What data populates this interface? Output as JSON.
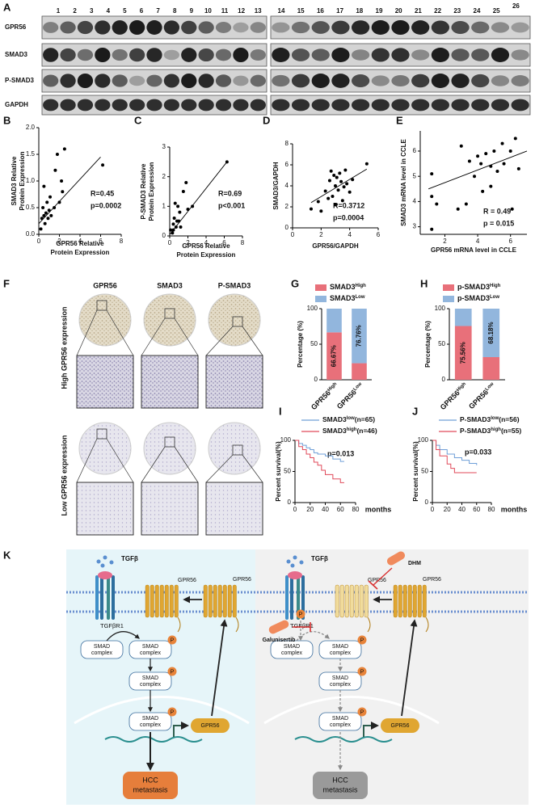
{
  "figure": {
    "panels": [
      "A",
      "B",
      "C",
      "D",
      "E",
      "F",
      "G",
      "H",
      "I",
      "J",
      "K"
    ],
    "blot": {
      "lanes": [
        "1",
        "2",
        "3",
        "4",
        "5",
        "6",
        "7",
        "8",
        "9",
        "10",
        "11",
        "12",
        "13",
        "14",
        "15",
        "16",
        "17",
        "18",
        "19",
        "20",
        "21",
        "22",
        "23",
        "24",
        "25",
        "26"
      ],
      "proteins": [
        "GPR56",
        "SMAD3",
        "P-SMAD3",
        "GAPDH"
      ]
    },
    "ihc": {
      "columns": [
        "GPR56",
        "SMAD3",
        "P-SMAD3"
      ],
      "rows": [
        "High GPR56 expression",
        "Low GPR56 expression"
      ]
    },
    "diagram": {
      "ligand": "TGFβ",
      "receptor": "TGFβR1",
      "gpr56": "GPR56",
      "smad": [
        "SMAD",
        "complex"
      ],
      "phospho": "P",
      "outcome": [
        "HCC",
        "metastasis"
      ],
      "drug1": "DHM",
      "drug2": "Galunisertib"
    }
  },
  "chart_data": [
    {
      "type": "scatter",
      "xlabel": [
        "GPR56 Relative",
        "Protein Expression"
      ],
      "ylabel": [
        "SMAD3 Relative",
        "Protein Expression"
      ],
      "x": [
        0.2,
        0.3,
        0.4,
        0.5,
        0.6,
        0.7,
        0.8,
        0.9,
        1.0,
        1.1,
        1.2,
        1.5,
        1.8,
        2.0,
        2.2,
        2.5,
        1.6,
        0.5,
        6.2,
        2.3
      ],
      "values": [
        0.1,
        0.3,
        0.5,
        0.35,
        0.2,
        0.4,
        0.6,
        0.3,
        0.45,
        0.7,
        0.35,
        0.5,
        1.5,
        0.6,
        1.0,
        1.6,
        1.2,
        0.9,
        1.3,
        0.8
      ],
      "fit": {
        "x": [
          0,
          6
        ],
        "values": [
          0.2,
          1.45
        ]
      },
      "xlim": [
        0,
        8
      ],
      "xticks": [
        0,
        2,
        4,
        6,
        8
      ],
      "ylim": [
        0,
        2
      ],
      "yticks": [
        {
          "value": 0,
          "label": "0.0"
        },
        {
          "value": 0.5,
          "label": "0.5"
        },
        {
          "value": 1,
          "label": "1.0"
        },
        {
          "value": 1.5,
          "label": "1.5"
        },
        {
          "value": 2,
          "label": "2.0"
        }
      ],
      "annotations": [
        "R=0.45",
        "p=0.0002"
      ],
      "color": "#000000"
    },
    {
      "type": "scatter",
      "xlabel": [
        "GPR56 Relative",
        "Protein Expression"
      ],
      "ylabel": [
        "P-SMAD3 Relative",
        "Protein Expression"
      ],
      "x": [
        0.1,
        0.3,
        0.4,
        0.5,
        0.7,
        0.8,
        0.9,
        1.0,
        1.1,
        1.2,
        1.5,
        1.8,
        2.0,
        2.5,
        0.6,
        6.3,
        0.4
      ],
      "values": [
        0.2,
        0.1,
        0.4,
        0.6,
        0.3,
        0.5,
        1.0,
        0.5,
        0.8,
        0.3,
        1.5,
        1.8,
        0.9,
        1.0,
        1.1,
        2.5,
        0.2
      ],
      "fit": {
        "x": [
          0,
          6.3
        ],
        "values": [
          0.05,
          2.5
        ]
      },
      "xlim": [
        0,
        8
      ],
      "xticks": [
        0,
        2,
        4,
        6,
        8
      ],
      "ylim": [
        0,
        3
      ],
      "yticks": [
        0,
        1,
        2,
        3
      ],
      "annotations": [
        "R=0.69",
        "p<0.001"
      ],
      "color": "#000000"
    },
    {
      "type": "scatter",
      "xlabel": [
        "GPR56/GAPDH"
      ],
      "ylabel": [
        "SMAD3/GAPDH"
      ],
      "x": [
        1.3,
        1.8,
        2.0,
        2.3,
        2.5,
        2.6,
        2.8,
        2.9,
        3.0,
        3.1,
        3.2,
        3.3,
        3.4,
        3.5,
        3.6,
        3.7,
        3.8,
        4.0,
        4.2,
        5.2,
        3.0,
        2.7
      ],
      "values": [
        1.8,
        2.5,
        1.6,
        3.5,
        2.8,
        4.5,
        3.0,
        5.0,
        4.0,
        4.8,
        3.6,
        5.2,
        4.4,
        2.6,
        3.9,
        5.5,
        4.2,
        3.4,
        4.6,
        6.1,
        2.2,
        5.4
      ],
      "fit": {
        "x": [
          1.3,
          5.2
        ],
        "values": [
          2.4,
          5.6
        ]
      },
      "xlim": [
        0,
        6
      ],
      "xticks": [
        0,
        2,
        4,
        6
      ],
      "ylim": [
        0,
        8
      ],
      "yticks": [
        0,
        2,
        4,
        6,
        8
      ],
      "annotations": [
        "R=0.3712",
        "p=0.0004"
      ],
      "color": "#000000"
    },
    {
      "type": "scatter",
      "xlabel": [
        "GPR56 mRNA level in CCLE"
      ],
      "ylabel": [
        "SMAD3 mRNA level in CCLE"
      ],
      "x": [
        1.2,
        1.2,
        1.5,
        1.2,
        3.0,
        3.5,
        4.0,
        4.2,
        4.5,
        4.8,
        5.0,
        5.2,
        5.5,
        6.0,
        6.3,
        6.5,
        4.8,
        3.3,
        6.1,
        2.8,
        5.6,
        4.3,
        3.8
      ],
      "values": [
        4.2,
        5.1,
        3.9,
        2.9,
        6.2,
        5.6,
        5.8,
        5.5,
        5.9,
        5.4,
        6.0,
        5.2,
        6.3,
        6.0,
        6.5,
        5.3,
        4.6,
        3.9,
        3.7,
        3.7,
        5.5,
        4.4,
        5.0
      ],
      "fit": {
        "x": [
          1.0,
          7.0
        ],
        "values": [
          4.5,
          6.0
        ]
      },
      "xlim": [
        0.5,
        7
      ],
      "xticks": [
        2,
        4,
        6
      ],
      "ylim": [
        2.7,
        6.8
      ],
      "yticks": [
        3,
        4,
        5,
        6
      ],
      "annotations": [
        "R = 0.49",
        "p = 0.015"
      ],
      "color": "#000000"
    },
    {
      "type": "stacked_bar",
      "ylabel": [
        "Percentage (%)"
      ],
      "categories": [
        {
          "text": "GPR56",
          "sup": "High"
        },
        {
          "text": "GPR56",
          "sup": "Low"
        }
      ],
      "series": [
        {
          "name": "SMAD3",
          "sup": "High",
          "color": "#e8707a",
          "values": [
            66.67,
            23.24
          ],
          "value_labels": [
            "66.67%",
            null
          ]
        },
        {
          "name": "SMAD3",
          "sup": "Low",
          "color": "#92b6dd",
          "values": [
            33.33,
            76.76
          ],
          "value_labels": [
            null,
            "76.76%"
          ]
        }
      ],
      "ylim": [
        0,
        100
      ],
      "yticks": [
        0,
        50,
        100
      ]
    },
    {
      "type": "stacked_bar",
      "ylabel": [
        "Percentage (%)"
      ],
      "categories": [
        {
          "text": "GPR56",
          "sup": "High"
        },
        {
          "text": "GPR56",
          "sup": "Low"
        }
      ],
      "series": [
        {
          "name": "p-SMAD3",
          "sup": "High",
          "color": "#e8707a",
          "values": [
            75.56,
            31.82
          ],
          "value_labels": [
            "75.56%",
            null
          ]
        },
        {
          "name": "p-SMAD3",
          "sup": "Low",
          "color": "#92b6dd",
          "values": [
            24.44,
            68.18
          ],
          "value_labels": [
            null,
            "68.18%"
          ]
        }
      ],
      "ylim": [
        0,
        100
      ],
      "yticks": [
        0,
        50,
        100
      ]
    },
    {
      "type": "survival",
      "ylabel": [
        "Percent survival(%)"
      ],
      "xlabel": [
        "months"
      ],
      "series": [
        {
          "name": "SMAD3",
          "sup": "low",
          "suffix": "(n=65)",
          "color": "#6f9fd8",
          "x": [
            0,
            5,
            10,
            15,
            20,
            25,
            30,
            40,
            50,
            60,
            65
          ],
          "values": [
            100,
            95,
            92,
            88,
            85,
            80,
            78,
            75,
            70,
            66,
            66
          ]
        },
        {
          "name": "SMAD3",
          "sup": "high",
          "suffix": "(n=46)",
          "color": "#e04a5a",
          "x": [
            0,
            5,
            10,
            15,
            20,
            25,
            30,
            35,
            40,
            50,
            60,
            65
          ],
          "values": [
            100,
            90,
            85,
            78,
            72,
            65,
            60,
            52,
            45,
            38,
            32,
            32
          ]
        }
      ],
      "xlim": [
        0,
        80
      ],
      "xticks": [
        0,
        20,
        40,
        60,
        80
      ],
      "ylim": [
        0,
        100
      ],
      "yticks": [
        0,
        50,
        100
      ],
      "annotations": [
        "p=0.013"
      ]
    },
    {
      "type": "survival",
      "ylabel": [
        "Percent survival(%)"
      ],
      "xlabel": [
        "months"
      ],
      "series": [
        {
          "name": "P-SMAD3",
          "sup": "low",
          "suffix": "(n=56)",
          "color": "#6f9fd8",
          "x": [
            0,
            5,
            10,
            20,
            30,
            40,
            50,
            60
          ],
          "values": [
            100,
            92,
            85,
            78,
            72,
            68,
            63,
            60
          ]
        },
        {
          "name": "P-SMAD3",
          "sup": "high",
          "suffix": "(n=55)",
          "color": "#e04a5a",
          "x": [
            0,
            5,
            10,
            20,
            25,
            30,
            40,
            60
          ],
          "values": [
            100,
            85,
            75,
            62,
            55,
            48,
            48,
            48
          ]
        }
      ],
      "xlim": [
        0,
        80
      ],
      "xticks": [
        0,
        20,
        40,
        60,
        80
      ],
      "ylim": [
        0,
        100
      ],
      "yticks": [
        0,
        50,
        100
      ],
      "annotations": [
        "p=0.033"
      ]
    }
  ]
}
